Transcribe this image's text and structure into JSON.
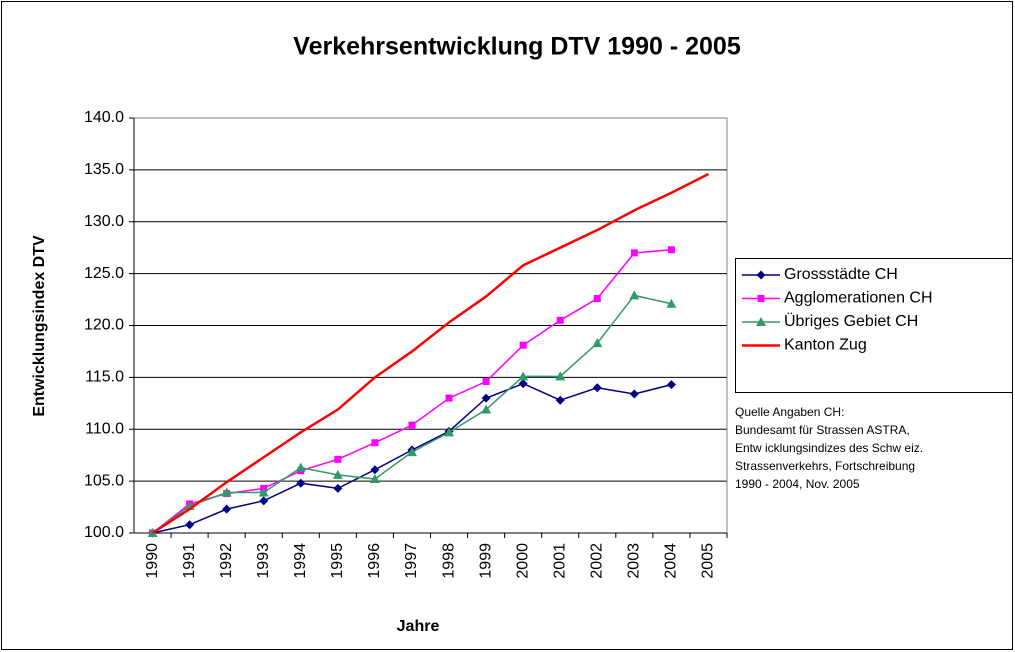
{
  "chart_data": {
    "type": "line",
    "title": "Verkehrsentwicklung DTV 1990 - 2005",
    "x_label": "Jahre",
    "y_label": "Entwicklungsindex DTV",
    "categories": [
      "1990",
      "1991",
      "1992",
      "1993",
      "1994",
      "1995",
      "1996",
      "1997",
      "1998",
      "1999",
      "2000",
      "2001",
      "2002",
      "2003",
      "2004",
      "2005"
    ],
    "series": [
      {
        "name": "Grossstädte CH",
        "color": "#000080",
        "marker": "diamond",
        "values": [
          100,
          100.8,
          102.3,
          103.1,
          104.8,
          104.3,
          106.1,
          108.0,
          109.8,
          113.0,
          114.4,
          112.8,
          114.0,
          113.4,
          114.3,
          null
        ]
      },
      {
        "name": "Agglomerationen CH",
        "color": "#ff00ff",
        "marker": "square",
        "values": [
          100,
          102.8,
          103.8,
          104.3,
          106.0,
          107.1,
          108.7,
          110.4,
          113.0,
          114.6,
          118.1,
          120.5,
          122.6,
          127.0,
          127.3,
          null
        ]
      },
      {
        "name": "Übriges Gebiet CH",
        "color": "#339966",
        "marker": "triangle",
        "values": [
          100,
          102.6,
          103.9,
          103.9,
          106.3,
          105.6,
          105.2,
          107.8,
          109.7,
          111.9,
          115.1,
          115.1,
          118.3,
          122.9,
          122.1,
          null
        ]
      },
      {
        "name": "Kanton Zug",
        "color": "#ff0000",
        "marker": "none",
        "values": [
          100,
          102.3,
          104.9,
          107.3,
          109.7,
          111.9,
          115.0,
          117.5,
          120.3,
          122.8,
          125.8,
          127.5,
          129.2,
          131.1,
          132.8,
          134.6
        ]
      }
    ],
    "ylim": [
      100,
      140
    ],
    "yticks": [
      {
        "value": 100,
        "label": "100.0"
      },
      {
        "value": 105,
        "label": "105.0"
      },
      {
        "value": 110,
        "label": "110.0"
      },
      {
        "value": 115,
        "label": "115.0"
      },
      {
        "value": 120,
        "label": "120.0"
      },
      {
        "value": 125,
        "label": "125.0"
      },
      {
        "value": 130,
        "label": "130.0"
      },
      {
        "value": 135,
        "label": "135.0"
      },
      {
        "value": 140,
        "label": "140.0"
      }
    ],
    "grid": true,
    "legend": "right",
    "source_note": [
      "Quelle Angaben CH:",
      "Bundesamt für Strassen ASTRA,",
      "Entw icklungsindizes des Schw eiz.",
      "Strassenverkehrs, Fortschreibung",
      "1990 - 2004, Nov. 2005"
    ]
  }
}
